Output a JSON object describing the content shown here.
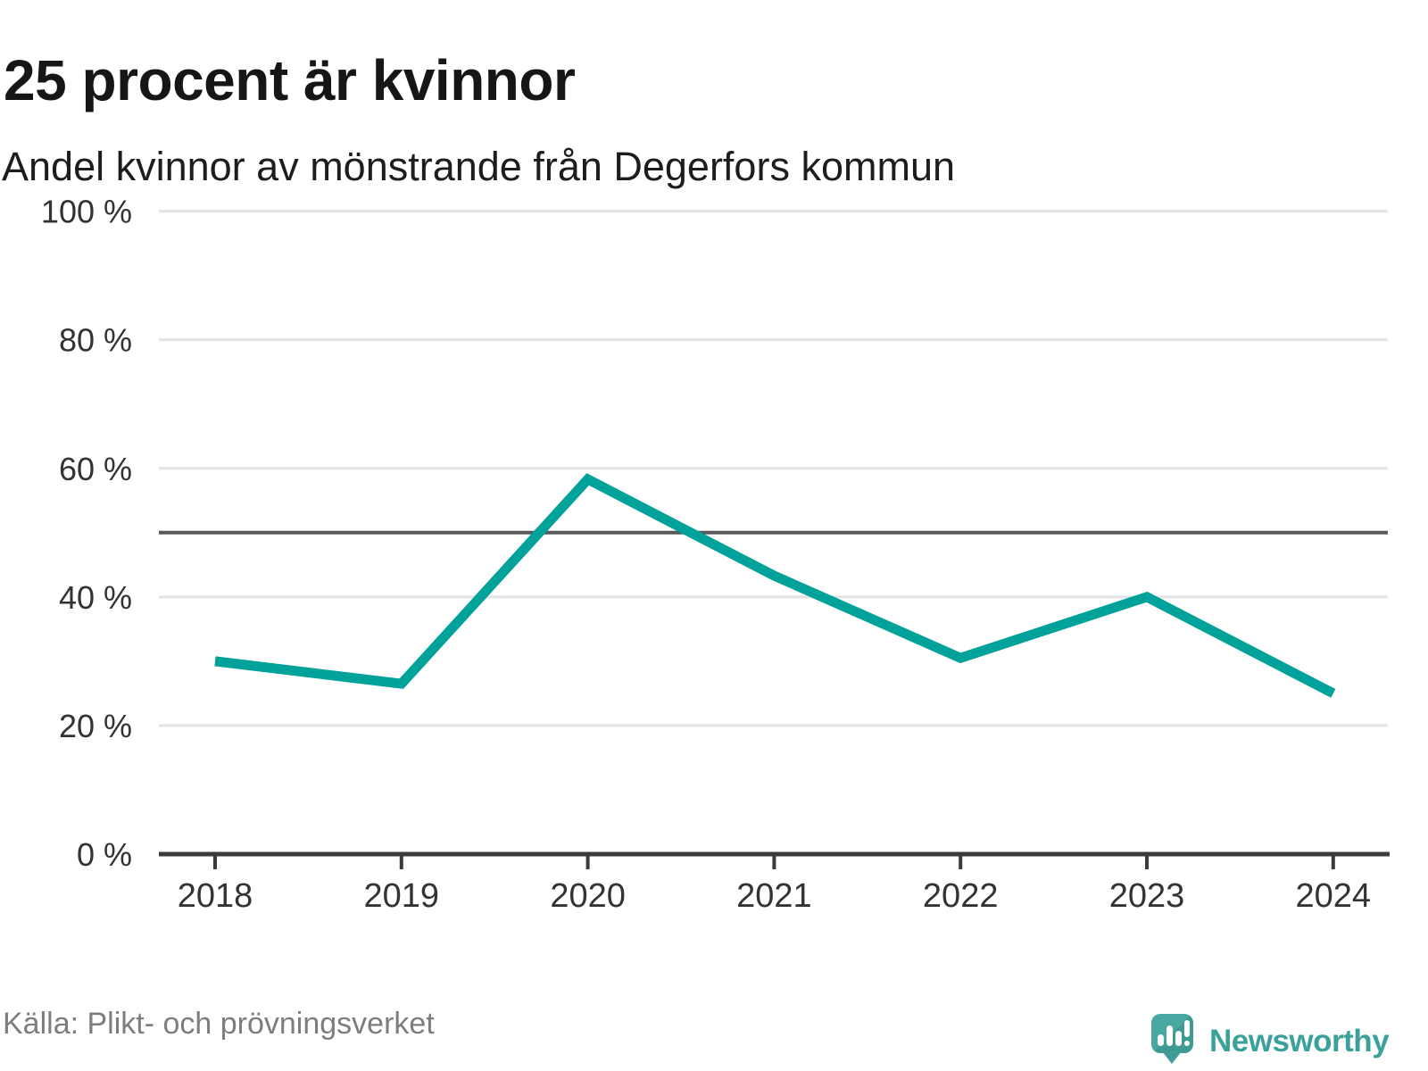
{
  "header": {
    "title": "25 procent är kvinnor",
    "subtitle": "Andel kvinnor av mönstrande från Degerfors kommun"
  },
  "footer": {
    "source": "Källa: Plikt- och prövningsverket",
    "brand": "Newsworthy"
  },
  "chart_data": {
    "type": "line",
    "title": "25 procent är kvinnor",
    "subtitle": "Andel kvinnor av mönstrande från Degerfors kommun",
    "categories": [
      "2018",
      "2019",
      "2020",
      "2021",
      "2022",
      "2023",
      "2024"
    ],
    "series": [
      {
        "name": "Andel kvinnor av mönstrande",
        "values": [
          30,
          26.5,
          58.3,
          43.3,
          30.5,
          40,
          25
        ]
      }
    ],
    "unit": "%",
    "xlabel": "",
    "ylabel": "",
    "ylim": [
      0,
      100
    ],
    "yticks": [
      0,
      20,
      40,
      60,
      80,
      100
    ],
    "ytick_labels": [
      "0 %",
      "20 %",
      "40 %",
      "60 %",
      "80 %",
      "100 %"
    ],
    "reference_line": 50,
    "grid": "horizontal",
    "legend": "none",
    "line_color": "#00a29a",
    "reference_line_color": "#58595b",
    "axis_color": "#3b3b3b",
    "gridline_color": "#e3e3e3",
    "tick_label_color": "#333333"
  }
}
